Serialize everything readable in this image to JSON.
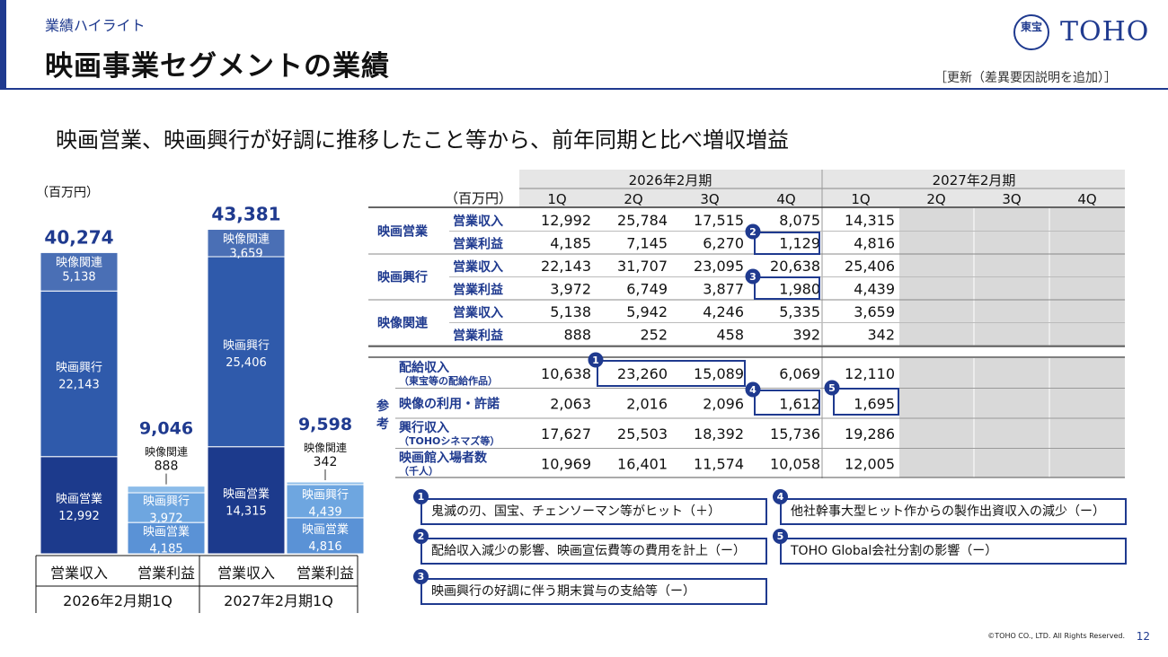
{
  "header": {
    "section": "業績ハイライト",
    "title": "映画事業セグメントの業績",
    "update_note": "［更新（差異要因説明を追加）］",
    "logo_seal": "東宝",
    "logo_word": "TOHO"
  },
  "headline": "映画営業、映画興行が好調に推移したこと等から、前年同期と比べ増収増益",
  "chart_data": {
    "type": "bar",
    "stacked": true,
    "unit": "（百万円）",
    "ylim": [
      0,
      45000
    ],
    "periods": [
      "2026年2月期1Q",
      "2027年2月期1Q"
    ],
    "categories": [
      "営業収入",
      "営業利益",
      "営業収入",
      "営業利益"
    ],
    "series": [
      {
        "name": "映画営業",
        "values": [
          12992,
          4185,
          14315,
          4816
        ],
        "color": "#1c3a8c"
      },
      {
        "name": "映画興行",
        "values": [
          22143,
          3972,
          25406,
          4439
        ],
        "color": "#2f5aab"
      },
      {
        "name": "映像関連",
        "values": [
          5138,
          888,
          3659,
          342
        ],
        "color": "#4a6fb5"
      }
    ],
    "light_colors": [
      "#5a92d6",
      "#6ea6e0",
      "#8cbce9"
    ],
    "totals": [
      "40,274",
      "9,046",
      "43,381",
      "9,598"
    ],
    "value_labels": {
      "映画営業": [
        "12,992",
        "4,185",
        "14,315",
        "4,816"
      ],
      "映画興行": [
        "22,143",
        "3,972",
        "25,406",
        "4,439"
      ],
      "映像関連": [
        "5,138",
        "888",
        "3,659",
        "342"
      ]
    }
  },
  "table": {
    "unit": "（百万円）",
    "fy_headers": [
      "2026年2月期",
      "2027年2月期"
    ],
    "quarters": [
      "1Q",
      "2Q",
      "3Q",
      "4Q",
      "1Q",
      "2Q",
      "3Q",
      "4Q"
    ],
    "segments": [
      {
        "name": "映画営業",
        "rows": [
          {
            "label": "営業収入",
            "values": [
              "12,992",
              "25,784",
              "17,515",
              "8,075",
              "14,315"
            ]
          },
          {
            "label": "営業利益",
            "values": [
              "4,185",
              "7,145",
              "6,270",
              "1,129",
              "4,816"
            ]
          }
        ]
      },
      {
        "name": "映画興行",
        "rows": [
          {
            "label": "営業収入",
            "values": [
              "22,143",
              "31,707",
              "23,095",
              "20,638",
              "25,406"
            ]
          },
          {
            "label": "営業利益",
            "values": [
              "3,972",
              "6,749",
              "3,877",
              "1,980",
              "4,439"
            ]
          }
        ]
      },
      {
        "name": "映像関連",
        "rows": [
          {
            "label": "営業収入",
            "values": [
              "5,138",
              "5,942",
              "4,246",
              "5,335",
              "3,659"
            ]
          },
          {
            "label": "営業利益",
            "values": [
              "888",
              "252",
              "458",
              "392",
              "342"
            ]
          }
        ]
      }
    ],
    "reference_label": [
      "参",
      "考"
    ],
    "reference_rows": [
      {
        "label": "配給収入",
        "sub": "（東宝等の配給作品）",
        "values": [
          "10,638",
          "23,260",
          "15,089",
          "6,069",
          "12,110"
        ]
      },
      {
        "label": "映像の利用・許諾",
        "sub": "",
        "values": [
          "2,063",
          "2,016",
          "2,096",
          "1,612",
          "1,695"
        ]
      },
      {
        "label": "興行収入",
        "sub": "（TOHOシネマズ等）",
        "values": [
          "17,627",
          "25,503",
          "18,392",
          "15,736",
          "19,286"
        ]
      },
      {
        "label": "映画館入場者数",
        "sub": "（千人）",
        "values": [
          "10,969",
          "16,401",
          "11,574",
          "10,058",
          "12,005"
        ]
      }
    ],
    "marker_numbers": [
      "1",
      "2",
      "3",
      "4",
      "5"
    ]
  },
  "notes": [
    {
      "num": "1",
      "text": "鬼滅の刃、国宝、チェンソーマン等がヒット（＋）"
    },
    {
      "num": "2",
      "text": "配給収入減少の影響、映画宣伝費等の費用を計上（ー）"
    },
    {
      "num": "3",
      "text": "映画興行の好調に伴う期末賞与の支給等（ー）"
    },
    {
      "num": "4",
      "text": "他社幹事大型ヒット作からの製作出資収入の減少（ー）"
    },
    {
      "num": "5",
      "text": "TOHO Global会社分割の影響（ー）"
    }
  ],
  "footer": {
    "copyright": "©TOHO CO., LTD. All Rights Reserved.",
    "page": "12"
  },
  "colors": {
    "brand": "#1f3a8f",
    "grid_header": "#e6e6e6",
    "empty_cell": "#d9d9d9"
  }
}
